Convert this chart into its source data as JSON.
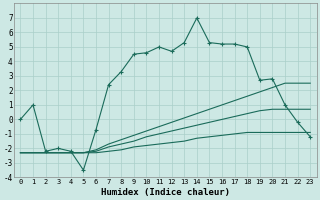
{
  "xlabel": "Humidex (Indice chaleur)",
  "x": [
    0,
    1,
    2,
    3,
    4,
    5,
    6,
    7,
    8,
    9,
    10,
    11,
    12,
    13,
    14,
    15,
    16,
    17,
    18,
    19,
    20,
    21,
    22,
    23
  ],
  "line1": [
    0.0,
    1.0,
    -2.2,
    -2.0,
    -2.2,
    -3.5,
    -0.7,
    2.4,
    3.3,
    4.5,
    4.6,
    5.0,
    4.7,
    5.3,
    7.0,
    5.3,
    5.2,
    5.2,
    5.0,
    2.7,
    2.8,
    1.0,
    -0.2,
    -1.2
  ],
  "line2": [
    -2.3,
    -2.3,
    -2.3,
    -2.3,
    -2.3,
    -2.3,
    -2.1,
    -1.7,
    -1.4,
    -1.1,
    -0.8,
    -0.5,
    -0.2,
    0.1,
    0.4,
    0.7,
    1.0,
    1.3,
    1.6,
    1.9,
    2.2,
    2.5,
    2.5,
    2.5
  ],
  "line3": [
    -2.3,
    -2.3,
    -2.3,
    -2.3,
    -2.3,
    -2.3,
    -2.2,
    -1.9,
    -1.7,
    -1.5,
    -1.2,
    -1.0,
    -0.8,
    -0.6,
    -0.4,
    -0.2,
    0.0,
    0.2,
    0.4,
    0.6,
    0.7,
    0.7,
    0.7,
    0.7
  ],
  "line4": [
    -2.3,
    -2.3,
    -2.3,
    -2.3,
    -2.3,
    -2.3,
    -2.3,
    -2.2,
    -2.1,
    -1.9,
    -1.8,
    -1.7,
    -1.6,
    -1.5,
    -1.3,
    -1.2,
    -1.1,
    -1.0,
    -0.9,
    -0.9,
    -0.9,
    -0.9,
    -0.9,
    -0.9
  ],
  "color": "#1a6b5a",
  "bg_color": "#cde8e4",
  "grid_color": "#aacfc9",
  "ylim": [
    -4,
    8
  ],
  "yticks": [
    -4,
    -3,
    -2,
    -1,
    0,
    1,
    2,
    3,
    4,
    5,
    6,
    7
  ],
  "xticks": [
    0,
    1,
    2,
    3,
    4,
    5,
    6,
    7,
    8,
    9,
    10,
    11,
    12,
    13,
    14,
    15,
    16,
    17,
    18,
    19,
    20,
    21,
    22,
    23
  ]
}
